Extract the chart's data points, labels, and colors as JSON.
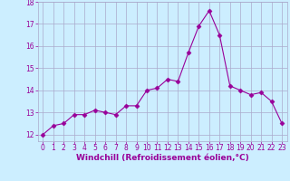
{
  "x": [
    0,
    1,
    2,
    3,
    4,
    5,
    6,
    7,
    8,
    9,
    10,
    11,
    12,
    13,
    14,
    15,
    16,
    17,
    18,
    19,
    20,
    21,
    22,
    23
  ],
  "y": [
    12.0,
    12.4,
    12.5,
    12.9,
    12.9,
    13.1,
    13.0,
    12.9,
    13.3,
    13.3,
    14.0,
    14.1,
    14.5,
    14.4,
    15.7,
    16.9,
    17.6,
    16.5,
    14.2,
    14.0,
    13.8,
    13.9,
    13.5,
    12.5
  ],
  "line_color": "#990099",
  "marker": "D",
  "marker_size": 2.5,
  "bg_color": "#cceeff",
  "grid_color": "#aaaacc",
  "xlabel": "Windchill (Refroidissement éolien,°C)",
  "xlabel_color": "#990099",
  "tick_color": "#990099",
  "ylim": [
    11.7,
    18.0
  ],
  "xlim": [
    -0.5,
    23.5
  ],
  "yticks": [
    12,
    13,
    14,
    15,
    16,
    17,
    18
  ],
  "xticks": [
    0,
    1,
    2,
    3,
    4,
    5,
    6,
    7,
    8,
    9,
    10,
    11,
    12,
    13,
    14,
    15,
    16,
    17,
    18,
    19,
    20,
    21,
    22,
    23
  ],
  "tick_fontsize": 5.5,
  "xlabel_fontsize": 6.5
}
